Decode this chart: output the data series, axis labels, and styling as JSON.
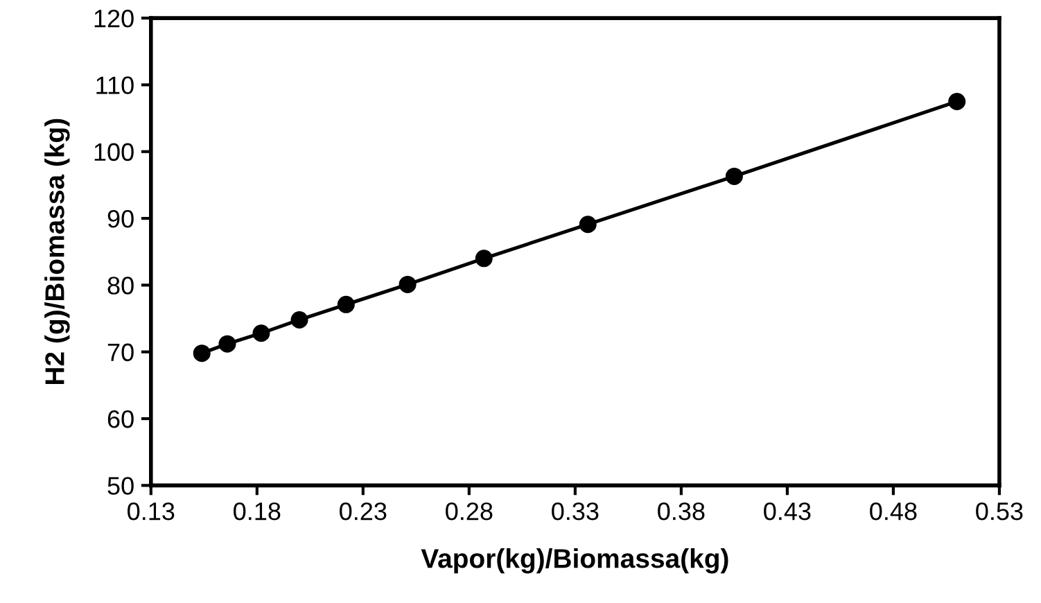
{
  "chart_data": {
    "type": "line",
    "xlabel": "Vapor(kg)/Biomassa(kg)",
    "ylabel": "H2 (g)/Biomassa (kg)",
    "series": [
      {
        "color": "#000000",
        "x": [
          0.154,
          0.166,
          0.182,
          0.2,
          0.222,
          0.251,
          0.287,
          0.336,
          0.405,
          0.51
        ],
        "values": [
          69.8,
          71.2,
          72.8,
          74.8,
          77.1,
          80.1,
          84.0,
          89.1,
          96.3,
          107.5
        ]
      }
    ],
    "xlim": [
      0.13,
      0.53
    ],
    "xticks": [
      0.13,
      0.18,
      0.23,
      0.28,
      0.33,
      0.38,
      0.43,
      0.48,
      0.53
    ],
    "ylim": [
      50,
      120
    ],
    "yticks": [
      50,
      60,
      70,
      80,
      90,
      100,
      110,
      120
    ],
    "marker": "circle",
    "line_style": "solid",
    "grid": false,
    "legend": false
  }
}
